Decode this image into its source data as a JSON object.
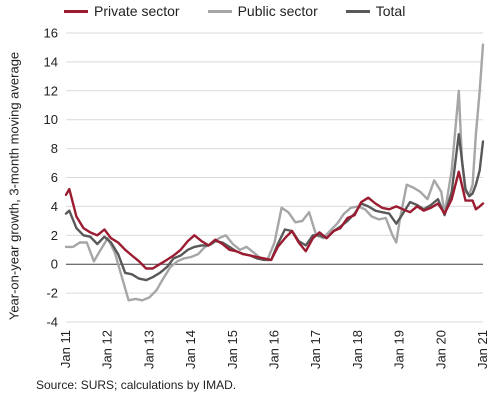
{
  "chart_data": {
    "type": "line",
    "ylabel": "Year-on-year growth, 3-month moving average",
    "source": "Source: SURS; calculations by IMAD.",
    "ylim": [
      -4,
      16
    ],
    "yticks": [
      -4,
      -2,
      0,
      2,
      4,
      6,
      8,
      10,
      12,
      14,
      16
    ],
    "xlim": [
      2011.0,
      2021.0
    ],
    "xtick_labels": [
      "Jan 11",
      "Jan 12",
      "Jan 13",
      "Jan 14",
      "Jan 15",
      "Jan 16",
      "Jan 17",
      "Jan 18",
      "Jan 19",
      "Jan 20",
      "Jan 21"
    ],
    "grid": "horizontal",
    "legend_position": "top",
    "series": [
      {
        "name": "Private sector",
        "color": "#9b1b30",
        "points": [
          [
            2011.0,
            4.8
          ],
          [
            2011.08,
            5.2
          ],
          [
            2011.25,
            3.3
          ],
          [
            2011.42,
            2.5
          ],
          [
            2011.58,
            2.2
          ],
          [
            2011.75,
            2.0
          ],
          [
            2011.92,
            2.4
          ],
          [
            2012.08,
            1.8
          ],
          [
            2012.25,
            1.5
          ],
          [
            2012.42,
            1.0
          ],
          [
            2012.58,
            0.6
          ],
          [
            2012.75,
            0.2
          ],
          [
            2012.92,
            -0.3
          ],
          [
            2013.08,
            -0.3
          ],
          [
            2013.25,
            0.0
          ],
          [
            2013.42,
            0.3
          ],
          [
            2013.58,
            0.6
          ],
          [
            2013.75,
            1.0
          ],
          [
            2013.92,
            1.6
          ],
          [
            2014.08,
            2.0
          ],
          [
            2014.25,
            1.6
          ],
          [
            2014.42,
            1.3
          ],
          [
            2014.58,
            1.7
          ],
          [
            2014.75,
            1.4
          ],
          [
            2014.92,
            1.0
          ],
          [
            2015.08,
            0.9
          ],
          [
            2015.25,
            0.7
          ],
          [
            2015.42,
            0.6
          ],
          [
            2015.58,
            0.5
          ],
          [
            2015.75,
            0.4
          ],
          [
            2015.92,
            0.3
          ],
          [
            2016.08,
            1.2
          ],
          [
            2016.25,
            1.8
          ],
          [
            2016.42,
            2.3
          ],
          [
            2016.58,
            1.5
          ],
          [
            2016.75,
            0.9
          ],
          [
            2016.92,
            1.8
          ],
          [
            2017.08,
            2.2
          ],
          [
            2017.25,
            1.8
          ],
          [
            2017.42,
            2.3
          ],
          [
            2017.58,
            2.5
          ],
          [
            2017.75,
            3.2
          ],
          [
            2017.92,
            3.4
          ],
          [
            2018.08,
            4.3
          ],
          [
            2018.25,
            4.6
          ],
          [
            2018.42,
            4.2
          ],
          [
            2018.58,
            3.9
          ],
          [
            2018.75,
            3.8
          ],
          [
            2018.92,
            4.0
          ],
          [
            2019.08,
            3.8
          ],
          [
            2019.25,
            3.6
          ],
          [
            2019.42,
            4.0
          ],
          [
            2019.58,
            3.7
          ],
          [
            2019.75,
            3.9
          ],
          [
            2019.92,
            4.2
          ],
          [
            2020.08,
            3.5
          ],
          [
            2020.25,
            4.5
          ],
          [
            2020.42,
            6.4
          ],
          [
            2020.58,
            4.4
          ],
          [
            2020.75,
            4.4
          ],
          [
            2020.83,
            3.8
          ],
          [
            2020.92,
            4.0
          ],
          [
            2021.0,
            4.2
          ]
        ]
      },
      {
        "name": "Public sector",
        "color": "#a6a6a6",
        "points": [
          [
            2011.0,
            1.2
          ],
          [
            2011.17,
            1.2
          ],
          [
            2011.33,
            1.5
          ],
          [
            2011.5,
            1.5
          ],
          [
            2011.67,
            0.2
          ],
          [
            2011.83,
            1.0
          ],
          [
            2012.0,
            1.8
          ],
          [
            2012.17,
            0.8
          ],
          [
            2012.33,
            -0.8
          ],
          [
            2012.5,
            -2.5
          ],
          [
            2012.67,
            -2.4
          ],
          [
            2012.83,
            -2.5
          ],
          [
            2013.0,
            -2.3
          ],
          [
            2013.17,
            -1.8
          ],
          [
            2013.33,
            -1.0
          ],
          [
            2013.5,
            -0.2
          ],
          [
            2013.67,
            0.2
          ],
          [
            2013.83,
            0.4
          ],
          [
            2014.0,
            0.5
          ],
          [
            2014.17,
            0.7
          ],
          [
            2014.33,
            1.2
          ],
          [
            2014.5,
            1.4
          ],
          [
            2014.67,
            1.8
          ],
          [
            2014.83,
            2.0
          ],
          [
            2015.0,
            1.4
          ],
          [
            2015.17,
            1.0
          ],
          [
            2015.33,
            1.2
          ],
          [
            2015.5,
            0.8
          ],
          [
            2015.67,
            0.4
          ],
          [
            2015.83,
            0.3
          ],
          [
            2016.0,
            1.5
          ],
          [
            2016.17,
            3.9
          ],
          [
            2016.33,
            3.6
          ],
          [
            2016.5,
            2.9
          ],
          [
            2016.67,
            3.0
          ],
          [
            2016.83,
            3.6
          ],
          [
            2017.0,
            2.0
          ],
          [
            2017.17,
            1.8
          ],
          [
            2017.33,
            2.3
          ],
          [
            2017.5,
            2.8
          ],
          [
            2017.67,
            3.5
          ],
          [
            2017.83,
            3.9
          ],
          [
            2018.0,
            4.0
          ],
          [
            2018.17,
            3.8
          ],
          [
            2018.33,
            3.3
          ],
          [
            2018.5,
            3.1
          ],
          [
            2018.67,
            3.2
          ],
          [
            2018.83,
            2.0
          ],
          [
            2018.92,
            1.5
          ],
          [
            2019.0,
            3.0
          ],
          [
            2019.17,
            5.5
          ],
          [
            2019.33,
            5.3
          ],
          [
            2019.5,
            5.0
          ],
          [
            2019.67,
            4.5
          ],
          [
            2019.83,
            5.8
          ],
          [
            2020.0,
            5.0
          ],
          [
            2020.08,
            3.5
          ],
          [
            2020.25,
            6.5
          ],
          [
            2020.42,
            12.0
          ],
          [
            2020.5,
            7.0
          ],
          [
            2020.58,
            5.0
          ],
          [
            2020.67,
            4.8
          ],
          [
            2020.75,
            5.5
          ],
          [
            2020.83,
            9.0
          ],
          [
            2020.92,
            12.0
          ],
          [
            2021.0,
            15.2
          ]
        ]
      },
      {
        "name": "Total",
        "color": "#595959",
        "points": [
          [
            2011.0,
            3.5
          ],
          [
            2011.08,
            3.7
          ],
          [
            2011.25,
            2.5
          ],
          [
            2011.42,
            2.0
          ],
          [
            2011.58,
            1.9
          ],
          [
            2011.75,
            1.4
          ],
          [
            2011.92,
            1.9
          ],
          [
            2012.08,
            1.5
          ],
          [
            2012.25,
            0.7
          ],
          [
            2012.42,
            -0.6
          ],
          [
            2012.58,
            -0.7
          ],
          [
            2012.75,
            -1.0
          ],
          [
            2012.92,
            -1.1
          ],
          [
            2013.08,
            -0.9
          ],
          [
            2013.25,
            -0.6
          ],
          [
            2013.42,
            -0.2
          ],
          [
            2013.58,
            0.4
          ],
          [
            2013.75,
            0.6
          ],
          [
            2013.92,
            1.0
          ],
          [
            2014.08,
            1.2
          ],
          [
            2014.25,
            1.3
          ],
          [
            2014.42,
            1.3
          ],
          [
            2014.58,
            1.6
          ],
          [
            2014.75,
            1.5
          ],
          [
            2014.92,
            1.2
          ],
          [
            2015.08,
            0.9
          ],
          [
            2015.25,
            0.7
          ],
          [
            2015.42,
            0.6
          ],
          [
            2015.58,
            0.4
          ],
          [
            2015.75,
            0.3
          ],
          [
            2015.92,
            0.3
          ],
          [
            2016.08,
            1.4
          ],
          [
            2016.25,
            2.4
          ],
          [
            2016.42,
            2.3
          ],
          [
            2016.58,
            1.6
          ],
          [
            2016.75,
            1.3
          ],
          [
            2016.92,
            2.0
          ],
          [
            2017.08,
            2.0
          ],
          [
            2017.25,
            1.8
          ],
          [
            2017.42,
            2.3
          ],
          [
            2017.58,
            2.6
          ],
          [
            2017.75,
            3.0
          ],
          [
            2017.92,
            3.5
          ],
          [
            2018.08,
            4.2
          ],
          [
            2018.25,
            4.0
          ],
          [
            2018.42,
            3.7
          ],
          [
            2018.58,
            3.6
          ],
          [
            2018.75,
            3.5
          ],
          [
            2018.92,
            2.8
          ],
          [
            2019.08,
            3.5
          ],
          [
            2019.25,
            4.3
          ],
          [
            2019.42,
            4.1
          ],
          [
            2019.58,
            3.8
          ],
          [
            2019.75,
            4.1
          ],
          [
            2019.92,
            4.5
          ],
          [
            2020.08,
            3.4
          ],
          [
            2020.25,
            5.0
          ],
          [
            2020.42,
            9.0
          ],
          [
            2020.58,
            5.2
          ],
          [
            2020.67,
            4.7
          ],
          [
            2020.75,
            4.9
          ],
          [
            2020.83,
            5.5
          ],
          [
            2020.92,
            6.5
          ],
          [
            2021.0,
            8.5
          ]
        ]
      }
    ]
  }
}
